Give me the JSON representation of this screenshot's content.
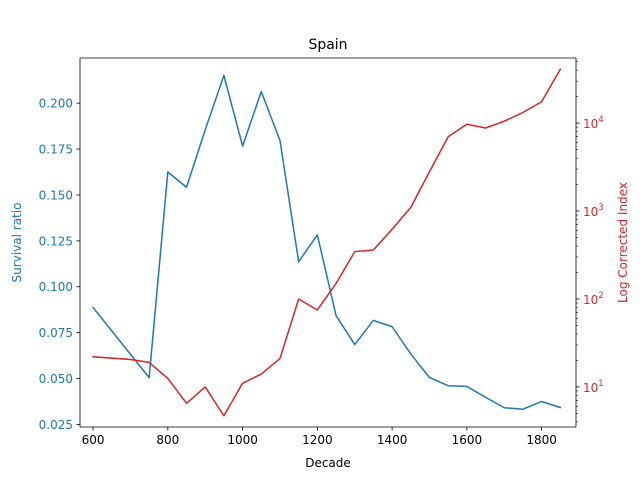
{
  "colors": {
    "left": "#1f77b4",
    "right": "#d62728",
    "axis": "#000000",
    "background": "#ffffff"
  },
  "chart_data": {
    "type": "line",
    "title": "Spain",
    "xlabel": "Decade",
    "ylabel_left": "Survival ratio",
    "ylabel_right": "Log Corrected Index",
    "xlim": [
      565,
      1892
    ],
    "ylim_left": [
      0.0236,
      0.2246
    ],
    "ylim_right": [
      3.5,
      55000
    ],
    "right_scale": "log",
    "grid": false,
    "x_ticks": [
      600,
      800,
      1000,
      1200,
      1400,
      1600,
      1800
    ],
    "y_ticks_left": [
      0.025,
      0.05,
      0.075,
      0.1,
      0.125,
      0.15,
      0.175,
      0.2
    ],
    "y_tick_labels_left": [
      "0.025",
      "0.050",
      "0.075",
      "0.100",
      "0.125",
      "0.150",
      "0.175",
      "0.200"
    ],
    "y_ticks_right": [
      10,
      100,
      1000,
      10000
    ],
    "y_tick_labels_right": [
      "10",
      "10",
      "10",
      "10"
    ],
    "y_tick_exponents_right": [
      "1",
      "2",
      "3",
      "4"
    ],
    "series": [
      {
        "axis": "left",
        "x": [
          600,
          750,
          800,
          850,
          900,
          950,
          1000,
          1050,
          1100,
          1150,
          1200,
          1250,
          1300,
          1350,
          1400,
          1450,
          1500,
          1550,
          1600,
          1650,
          1700,
          1750,
          1800,
          1850
        ],
        "values": [
          0.0887,
          0.0505,
          0.1625,
          0.1542,
          0.1855,
          0.2151,
          0.1766,
          0.2063,
          0.1797,
          0.1136,
          0.1282,
          0.0843,
          0.0685,
          0.0817,
          0.0782,
          0.0634,
          0.0505,
          0.0461,
          0.0457,
          0.0398,
          0.0341,
          0.0333,
          0.0375,
          0.0342
        ]
      },
      {
        "axis": "right",
        "x": [
          600,
          700,
          750,
          800,
          850,
          900,
          950,
          1000,
          1050,
          1100,
          1150,
          1200,
          1250,
          1300,
          1350,
          1400,
          1450,
          1500,
          1550,
          1600,
          1650,
          1700,
          1750,
          1800,
          1850
        ],
        "values": [
          22,
          20.5,
          19,
          12.5,
          6.5,
          10,
          4.7,
          11,
          14,
          21,
          100,
          75,
          150,
          345,
          360,
          620,
          1100,
          2800,
          7000,
          9700,
          8800,
          10500,
          13200,
          17500,
          41000
        ]
      }
    ]
  }
}
